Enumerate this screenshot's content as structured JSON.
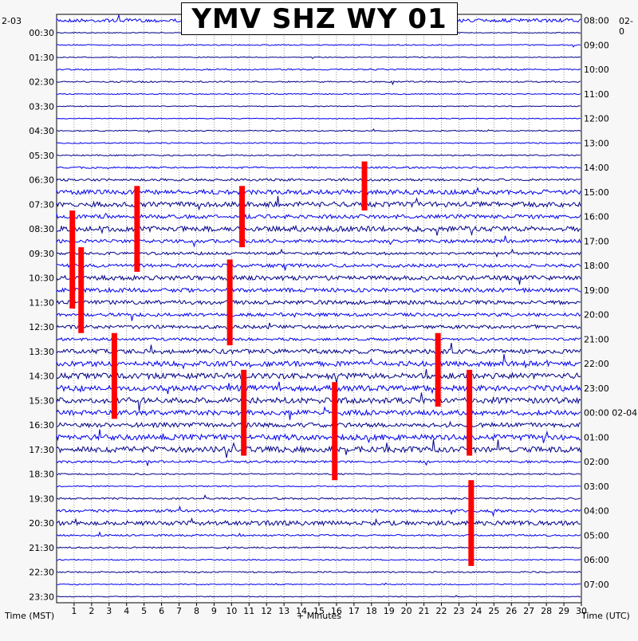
{
  "title": "YMV SHZ WY 01",
  "corner_left_date": "2-03",
  "corner_right_date": "02-0",
  "left_axis_label": "Time (MST)",
  "right_axis_label": "Time (UTC)",
  "x_axis_label": "+ Minutes",
  "colors": {
    "trace_a": "#0000ee",
    "trace_b": "#00008b",
    "clip": "#ff0000",
    "grid": "#000000"
  },
  "chart_data": {
    "type": "heatmap",
    "description_kind": "helicorder",
    "xlabel": "+ Minutes",
    "xlim": [
      0,
      30
    ],
    "x_ticks": [
      "1",
      "2",
      "3",
      "4",
      "5",
      "6",
      "7",
      "8",
      "9",
      "10",
      "11",
      "12",
      "13",
      "14",
      "15",
      "16",
      "17",
      "18",
      "19",
      "20",
      "21",
      "22",
      "23",
      "24",
      "25",
      "26",
      "27",
      "28",
      "29",
      "30"
    ],
    "left_ticks": [
      "00:30",
      "01:30",
      "02:30",
      "03:30",
      "04:30",
      "05:30",
      "06:30",
      "07:30",
      "08:30",
      "09:30",
      "10:30",
      "11:30",
      "12:30",
      "13:30",
      "14:30",
      "15:30",
      "16:30",
      "17:30",
      "18:30",
      "19:30",
      "20:30",
      "21:30",
      "22:30",
      "23:30"
    ],
    "right_ticks": [
      "08:00",
      "09:00",
      "10:00",
      "11:00",
      "12:00",
      "13:00",
      "14:00",
      "15:00",
      "16:00",
      "17:00",
      "18:00",
      "19:00",
      "20:00",
      "21:00",
      "22:00",
      "23:00",
      "00:00 02-04",
      "01:00",
      "02:00",
      "03:00",
      "04:00",
      "05:00",
      "06:00",
      "07:00"
    ],
    "row_count": 48,
    "row_activity": [
      0.6,
      0.15,
      0.2,
      0.15,
      0.25,
      0.25,
      0.2,
      0.15,
      0.15,
      0.2,
      0.2,
      0.25,
      0.3,
      0.4,
      0.8,
      0.9,
      0.7,
      0.9,
      0.6,
      0.5,
      0.6,
      0.8,
      0.7,
      0.7,
      0.6,
      0.6,
      0.5,
      0.8,
      0.9,
      1.0,
      1.0,
      1.0,
      0.9,
      0.8,
      1.0,
      1.0,
      0.4,
      0.25,
      0.2,
      0.3,
      0.5,
      0.8,
      0.3,
      0.25,
      0.2,
      0.25,
      0.2,
      0.15
    ],
    "clip_events": [
      {
        "row": 16,
        "rows": 8,
        "minute": 0.9
      },
      {
        "row": 14,
        "rows": 7,
        "minute": 4.6
      },
      {
        "row": 14,
        "rows": 5,
        "minute": 10.6
      },
      {
        "row": 12,
        "rows": 4,
        "minute": 17.6
      },
      {
        "row": 19,
        "rows": 7,
        "minute": 1.4
      },
      {
        "row": 20,
        "rows": 7,
        "minute": 9.9
      },
      {
        "row": 26,
        "rows": 7,
        "minute": 3.3
      },
      {
        "row": 26,
        "rows": 6,
        "minute": 21.8
      },
      {
        "row": 29,
        "rows": 7,
        "minute": 10.7
      },
      {
        "row": 30,
        "rows": 8,
        "minute": 15.9
      },
      {
        "row": 29,
        "rows": 7,
        "minute": 23.6
      },
      {
        "row": 38,
        "rows": 7,
        "minute": 23.7
      }
    ]
  }
}
